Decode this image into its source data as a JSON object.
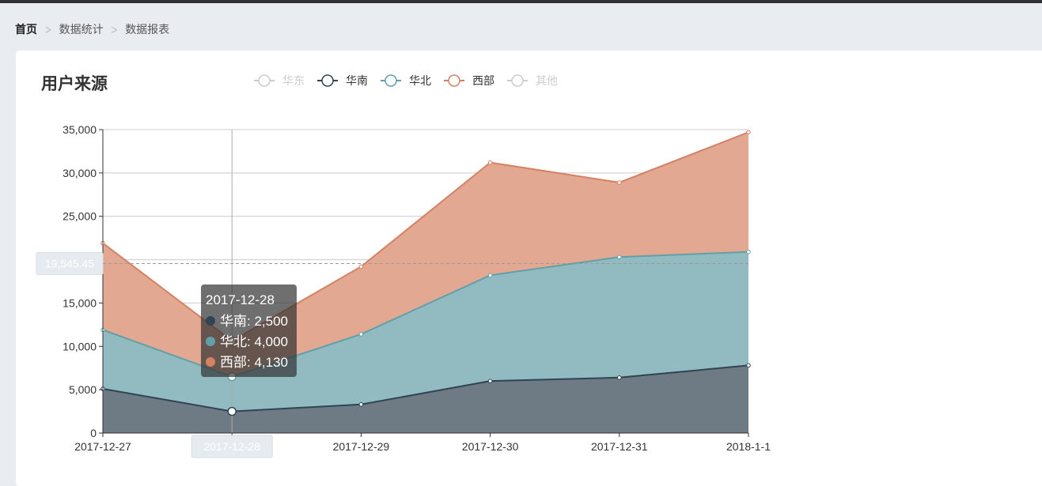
{
  "breadcrumb": {
    "items": [
      "首页",
      "数据统计",
      "数据报表"
    ],
    "separator": ">"
  },
  "card": {
    "title": "用户来源"
  },
  "tooltip": {
    "title": "2017-12-28",
    "items": [
      {
        "name": "华南",
        "value": "2,500"
      },
      {
        "name": "华北",
        "value": "4,000"
      },
      {
        "name": "西部",
        "value": "4,130"
      }
    ]
  },
  "axis_pointer": {
    "y_value": "19,545.45",
    "x_value": "2017-12-28"
  },
  "chart_data": {
    "type": "area",
    "stacked": true,
    "title": "用户来源",
    "categories": [
      "2017-12-27",
      "2017-12-28",
      "2017-12-29",
      "2017-12-30",
      "2017-12-31",
      "2018-1-1"
    ],
    "legend": [
      {
        "name": "华东",
        "active": false
      },
      {
        "name": "华南",
        "active": true
      },
      {
        "name": "华北",
        "active": true
      },
      {
        "name": "西部",
        "active": true
      },
      {
        "name": "其他",
        "active": false
      }
    ],
    "series": [
      {
        "name": "华南",
        "values": [
          5100,
          2500,
          3300,
          6000,
          6400,
          7800
        ],
        "color": "#2f4554",
        "fill": "#6e7a84"
      },
      {
        "name": "华北",
        "values": [
          6800,
          4000,
          8100,
          12200,
          13900,
          13100
        ],
        "color": "#61a0a8",
        "fill": "#91bac1"
      },
      {
        "name": "西部",
        "values": [
          10000,
          4130,
          7800,
          13000,
          8600,
          13800
        ],
        "color": "#d48265",
        "fill": "#e2a891"
      }
    ],
    "yticks": [
      "0",
      "5,000",
      "10,000",
      "15,000",
      "20,000",
      "25,000",
      "30,000",
      "35,000"
    ],
    "ylim": [
      0,
      35000
    ],
    "grid": true,
    "legend_position": "top-center",
    "inactive_color": "#cccccc"
  }
}
